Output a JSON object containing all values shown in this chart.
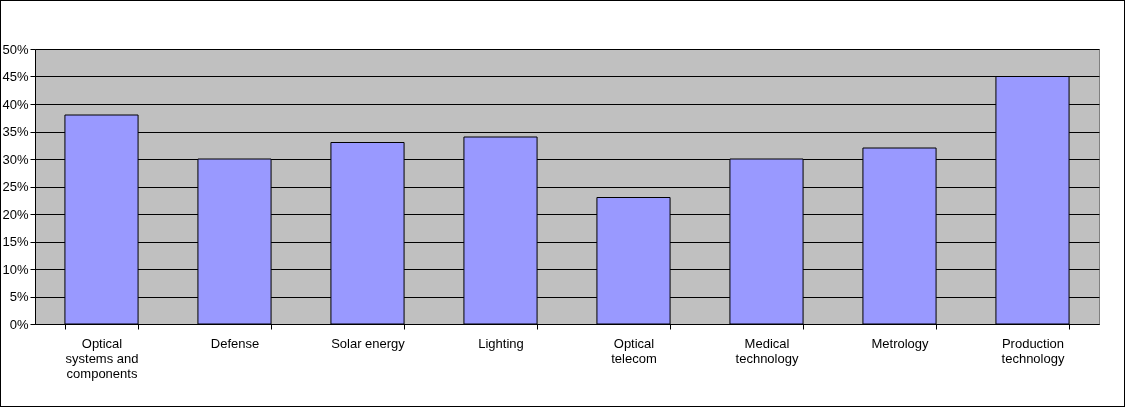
{
  "chart_data": {
    "type": "bar",
    "categories": [
      "Optical systems and components",
      "Defense",
      "Solar energy",
      "Lighting",
      "Optical telecom",
      "Medical technology",
      "Metrology",
      "Production technology"
    ],
    "values": [
      38,
      30,
      33,
      34,
      23,
      30,
      32,
      45
    ],
    "color": "#9999ff",
    "ylim": [
      0,
      50
    ],
    "yticks": [
      {
        "value": 0,
        "label": "0%"
      },
      {
        "value": 5,
        "label": "5%"
      },
      {
        "value": 10,
        "label": "10%"
      },
      {
        "value": 15,
        "label": "15%"
      },
      {
        "value": 20,
        "label": "20%"
      },
      {
        "value": 25,
        "label": "25%"
      },
      {
        "value": 30,
        "label": "30%"
      },
      {
        "value": 35,
        "label": "35%"
      },
      {
        "value": 40,
        "label": "40%"
      },
      {
        "value": 45,
        "label": "45%"
      },
      {
        "value": 50,
        "label": "50%"
      }
    ],
    "grid": "y"
  }
}
